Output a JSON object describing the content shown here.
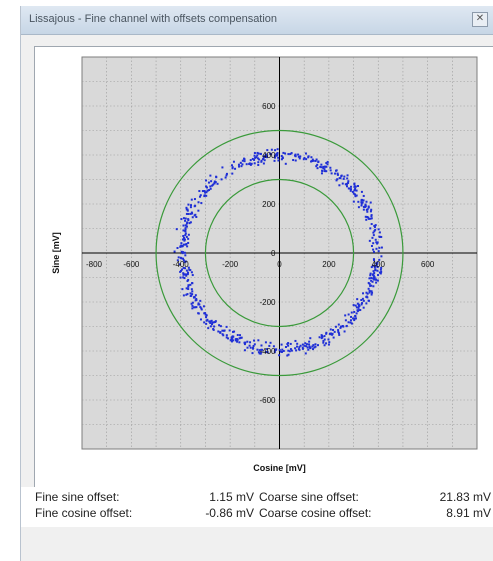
{
  "window": {
    "title": "Lissajous - Fine channel with offsets compensation",
    "close_icon": "close-icon"
  },
  "chart_data": {
    "type": "scatter",
    "xlabel": "Cosine [mV]",
    "ylabel": "Sine [mV]",
    "xlim": [
      -800,
      800
    ],
    "ylim": [
      -800,
      800
    ],
    "x_ticks": [
      "-800",
      "-600",
      "-400",
      "-200",
      "0",
      "200",
      "400",
      "600"
    ],
    "y_ticks": [
      "600",
      "400",
      "200",
      "0",
      "-200",
      "-400",
      "-600"
    ],
    "grid": true,
    "colors": {
      "points": "#1f2fd6",
      "circles": "#3a9a3a",
      "background": "#d9d9d9",
      "grid": "#9a9a9a"
    },
    "reference_circles": [
      {
        "radius": 300
      },
      {
        "radius": 500
      }
    ],
    "series": [
      {
        "shape": "ring",
        "center": [
          0,
          0
        ],
        "radius_mean": 395,
        "radius_spread": 25,
        "count": 700
      }
    ]
  },
  "readouts": {
    "fine_sine_label": "Fine sine offset:",
    "fine_sine_value": "1.15 mV",
    "fine_cosine_label": "Fine cosine offset:",
    "fine_cosine_value": "-0.86 mV",
    "coarse_sine_label": "Coarse sine offset:",
    "coarse_sine_value": "21.83 mV",
    "coarse_cosine_label": "Coarse cosine offset:",
    "coarse_cosine_value": "8.91 mV"
  }
}
